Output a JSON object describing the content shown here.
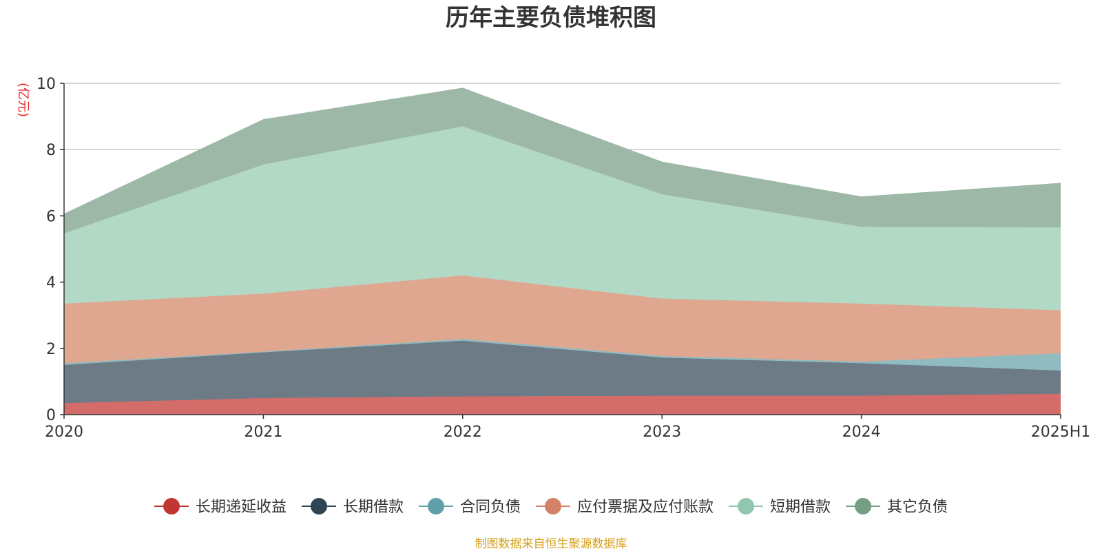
{
  "chart_data": {
    "type": "area",
    "stacked": true,
    "title": "历年主要负债堆积图",
    "ylabel": "(亿元)",
    "ylim": [
      0,
      10
    ],
    "yticks": [
      "0",
      "2",
      "4",
      "6",
      "8",
      "10"
    ],
    "categories": [
      "2020",
      "2021",
      "2022",
      "2023",
      "2024",
      "2025H1"
    ],
    "grid": true,
    "legend_position": "bottom",
    "source_note": "制图数据来自恒生聚源数据库",
    "series": [
      {
        "name": "长期递延收益",
        "color": "#c23531",
        "fill": "#d46c69",
        "values": [
          0.35,
          0.5,
          0.55,
          0.57,
          0.57,
          0.63
        ]
      },
      {
        "name": "长期借款",
        "color": "#2f4554",
        "fill": "#6d7b86",
        "values": [
          1.15,
          1.38,
          1.68,
          1.15,
          0.98,
          0.7
        ]
      },
      {
        "name": "合同负债",
        "color": "#61a0a8",
        "fill": "#8fbbc1",
        "values": [
          0.05,
          0.02,
          0.05,
          0.05,
          0.05,
          0.52
        ]
      },
      {
        "name": "应付票据及应付账款",
        "color": "#d48265",
        "fill": "#e0a790",
        "values": [
          1.8,
          1.75,
          1.92,
          1.73,
          1.75,
          1.3
        ]
      },
      {
        "name": "短期借款",
        "color": "#91c7ae",
        "fill": "#b2d8c6",
        "values": [
          2.12,
          3.9,
          4.5,
          3.15,
          2.32,
          2.5
        ]
      },
      {
        "name": "其它负债",
        "color": "#749f83",
        "fill": "#9db8a6",
        "values": [
          0.58,
          1.35,
          1.15,
          0.97,
          0.9,
          1.33
        ]
      }
    ]
  }
}
